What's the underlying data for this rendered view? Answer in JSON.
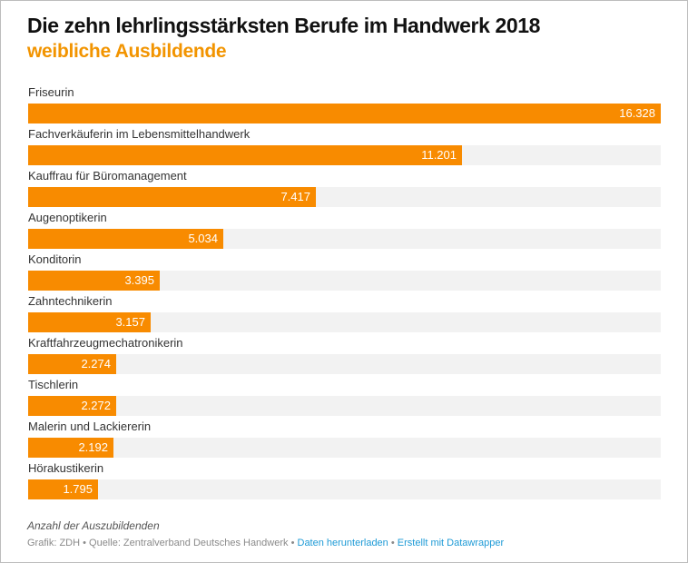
{
  "chart_data": {
    "type": "bar",
    "orientation": "horizontal",
    "title": "Die zehn lehrlingsstärksten Berufe im Handwerk 2018",
    "subtitle": "weibliche Ausbildende",
    "categories": [
      "Friseurin",
      "Fachverkäuferin im Lebensmittelhandwerk",
      "Kauffrau für Büromanagement",
      "Augenoptikerin",
      "Konditorin",
      "Zahntechnikerin",
      "Kraftfahrzeugmechatronikerin",
      "Tischlerin",
      "Malerin und Lackiererin",
      "Hörakustikerin"
    ],
    "values": [
      16328,
      11201,
      7417,
      5034,
      3395,
      3157,
      2274,
      2272,
      2192,
      1795
    ],
    "value_labels": [
      "16.328",
      "11.201",
      "7.417",
      "5.034",
      "3.395",
      "3.157",
      "2.274",
      "2.272",
      "2.192",
      "1.795"
    ],
    "xlim": [
      0,
      16328
    ],
    "xlabel": "",
    "ylabel": "",
    "grid": false,
    "legend": "none",
    "colors": {
      "bar": "#f88b00",
      "track": "#f2f2f2",
      "subtitle": "#f29400"
    }
  },
  "notes": "Anzahl der Auszubildenden",
  "footer": {
    "source_text": "Grafik: ZDH • Quelle: Zentralverband Deutsches Handwerk",
    "separator": " • ",
    "download_link": "Daten herunterladen",
    "made_with_link": "Erstellt mit Datawrapper",
    "link_color": "#1d9ad6"
  }
}
